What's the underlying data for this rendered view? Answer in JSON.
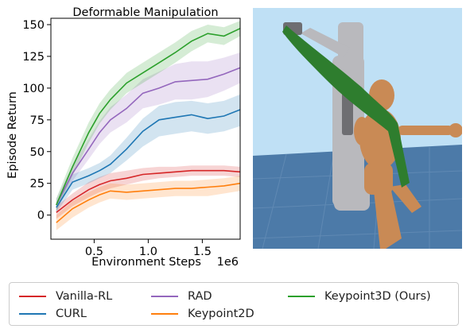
{
  "chart_data": {
    "type": "line",
    "title": "Deformable Manipulation",
    "xlabel": "Environment Steps",
    "x_multiplier_label": "1e6",
    "ylabel": "Episode Return",
    "xlim": [
      0.1,
      1.85
    ],
    "ylim": [
      -19,
      155
    ],
    "x_ticks": [
      0.5,
      1.0,
      1.5
    ],
    "x_tick_labels": [
      "0.5",
      "1.0",
      "1.5"
    ],
    "y_ticks": [
      0,
      25,
      50,
      75,
      100,
      125,
      150
    ],
    "y_tick_labels": [
      "0",
      "25",
      "50",
      "75",
      "100",
      "125",
      "150"
    ],
    "grid": false,
    "legend_placement": "bottom",
    "x": [
      0.15,
      0.3,
      0.45,
      0.55,
      0.65,
      0.8,
      0.95,
      1.1,
      1.25,
      1.4,
      1.55,
      1.7,
      1.85
    ],
    "series": [
      {
        "name": "Vanilla-RL",
        "color": "#d62728",
        "values": [
          2,
          12,
          20,
          24,
          27,
          29,
          32,
          33,
          34,
          35,
          35,
          35,
          34
        ],
        "lower": [
          -3,
          7,
          14,
          18,
          21,
          24,
          27,
          29,
          30,
          31,
          31,
          31,
          30
        ],
        "upper": [
          7,
          17,
          26,
          30,
          33,
          35,
          37,
          38,
          38,
          39,
          39,
          39,
          38
        ]
      },
      {
        "name": "CURL",
        "color": "#1f77b4",
        "values": [
          6,
          26,
          31,
          35,
          40,
          52,
          66,
          75,
          77,
          79,
          76,
          78,
          83
        ],
        "lower": [
          2,
          20,
          25,
          29,
          33,
          43,
          54,
          62,
          64,
          66,
          64,
          66,
          70
        ],
        "upper": [
          10,
          32,
          37,
          41,
          47,
          61,
          76,
          86,
          89,
          90,
          88,
          90,
          95
        ]
      },
      {
        "name": "RAD",
        "color": "#9467bd",
        "values": [
          8,
          33,
          52,
          65,
          75,
          84,
          96,
          100,
          105,
          106,
          107,
          111,
          116
        ],
        "lower": [
          3,
          27,
          44,
          56,
          65,
          73,
          84,
          87,
          91,
          91,
          93,
          98,
          104
        ],
        "upper": [
          13,
          39,
          60,
          74,
          85,
          95,
          107,
          113,
          119,
          121,
          121,
          124,
          128
        ]
      },
      {
        "name": "Keypoint2D",
        "color": "#ff7f0e",
        "values": [
          -6,
          5,
          12,
          16,
          19,
          18,
          19,
          20,
          21,
          21,
          22,
          23,
          25
        ],
        "lower": [
          -12,
          -2,
          6,
          10,
          13,
          12,
          13,
          14,
          15,
          15,
          15,
          17,
          19
        ],
        "upper": [
          0,
          11,
          18,
          22,
          25,
          24,
          25,
          26,
          27,
          27,
          28,
          29,
          31
        ]
      },
      {
        "name": "Keypoint3D (Ours)",
        "color": "#2ca02c",
        "values": [
          8,
          38,
          65,
          80,
          91,
          104,
          112,
          120,
          128,
          137,
          143,
          141,
          147
        ],
        "lower": [
          3,
          31,
          57,
          72,
          83,
          96,
          104,
          112,
          120,
          129,
          136,
          134,
          141
        ],
        "upper": [
          13,
          45,
          73,
          88,
          99,
          112,
          120,
          128,
          136,
          145,
          150,
          148,
          153
        ]
      }
    ]
  },
  "legend": {
    "items": [
      "Vanilla-RL",
      "RAD",
      "Keypoint3D (Ours)",
      "CURL",
      "Keypoint2D"
    ],
    "colors": [
      "#d62728",
      "#9467bd",
      "#2ca02c",
      "#1f77b4",
      "#ff7f0e"
    ]
  },
  "scene": {
    "sky_color": "#bfe0f5",
    "floor_color": "#4c7aa8",
    "robot_color": "#b9b9bd",
    "humanoid_color": "#c98a55",
    "scarf_color": "#2e7d2e"
  }
}
